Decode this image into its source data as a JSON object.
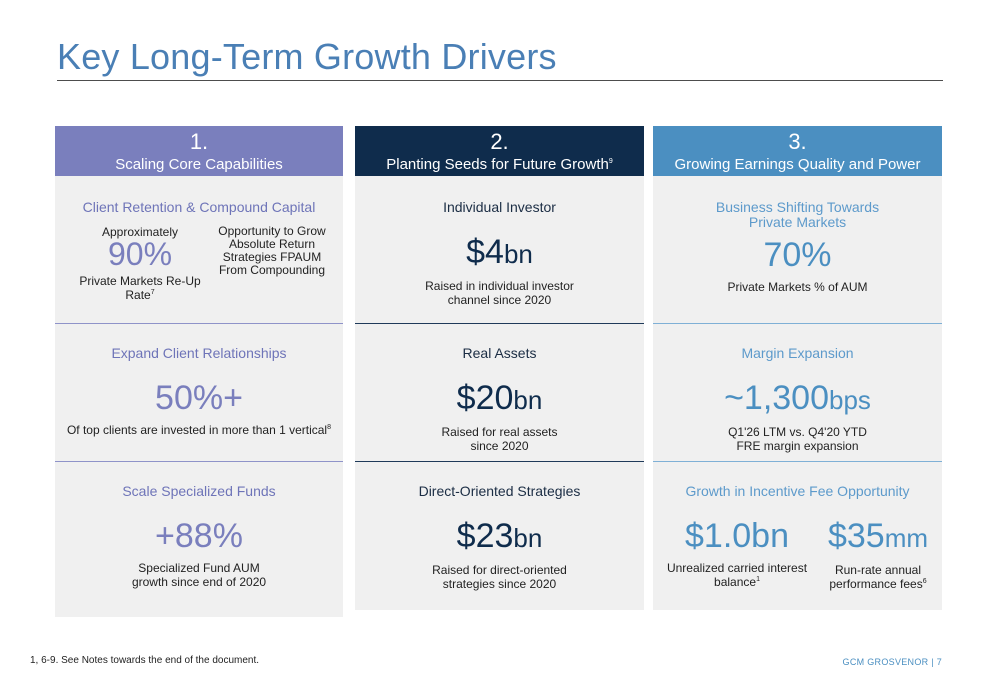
{
  "page": {
    "title": "Key Long-Term Growth Drivers",
    "footnote": "1, 6-9. See Notes towards the end of the document.",
    "footer": "GCM GROSVENOR | 7"
  },
  "columns": [
    {
      "number": "1.",
      "label": "Scaling Core Capabilities",
      "cells": [
        {
          "heading": "Client Retention & Compound Capital",
          "left_top": "Approximately",
          "left_value": "90%",
          "left_bottom": "Private Markets Re-Up Rate",
          "left_sup": "7",
          "right_text": "Opportunity to Grow Absolute Return Strategies FPAUM From Compounding"
        },
        {
          "heading": "Expand Client Relationships",
          "value": "50%+",
          "desc": "Of top clients are invested in more than 1 vertical",
          "desc_sup": "8"
        },
        {
          "heading": "Scale Specialized Funds",
          "value": "+88%",
          "desc": "Specialized Fund AUM growth since end of 2020"
        }
      ]
    },
    {
      "number": "2.",
      "label": "Planting Seeds for Future Growth",
      "label_sup": "9",
      "cells": [
        {
          "heading": "Individual Investor",
          "value": "$4",
          "unit": "bn",
          "desc": "Raised in individual investor channel since 2020"
        },
        {
          "heading": "Real Assets",
          "value": "$20",
          "unit": "bn",
          "desc": "Raised for real assets since 2020"
        },
        {
          "heading": "Direct-Oriented Strategies",
          "value": "$23",
          "unit": "bn",
          "desc": "Raised for direct-oriented strategies since 2020"
        }
      ]
    },
    {
      "number": "3.",
      "label": "Growing Earnings Quality and Power",
      "cells": [
        {
          "heading": "Business Shifting Towards Private Markets",
          "value": "70%",
          "desc": "Private Markets % of AUM"
        },
        {
          "heading": "Margin Expansion",
          "value": "~1,300",
          "unit": "bps",
          "desc": "Q1'26 LTM vs. Q4'20 YTD FRE margin expansion"
        },
        {
          "heading": "Growth in Incentive Fee Opportunity",
          "left_value": "$1.0bn",
          "left_desc": "Unrealized carried interest balance",
          "left_sup": "1",
          "right_value": "$35",
          "right_unit": "mm",
          "right_desc": "Run-rate annual performance fees",
          "right_sup": "6"
        }
      ]
    }
  ]
}
